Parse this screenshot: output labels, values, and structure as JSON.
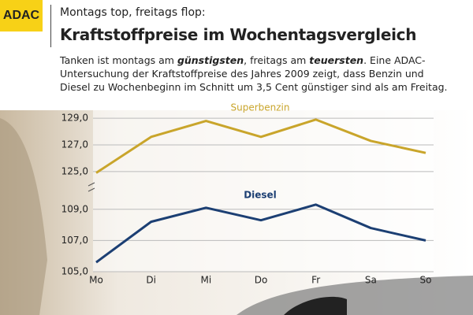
{
  "logo": "ADAC",
  "header": {
    "kicker": "Montags top, freitags flop:",
    "title": "Kraftstoffpreise im Wochentagsvergleich"
  },
  "intro": [
    "Tanken ist montags am ",
    "günstigsten",
    ", freitags am ",
    "teuersten",
    ". Eine ADAC-Untersuchung der Kraftstoffpreise des Jahres 2009 zeigt, dass Benzin und Diesel zu Wochenbeginn im Schnitt um 3,5 Cent günstiger sind als am Freitag."
  ],
  "chart_data": {
    "type": "line",
    "grid": true,
    "categories": [
      "Mo",
      "Di",
      "Mi",
      "Do",
      "Fr",
      "Sa",
      "So"
    ],
    "series": [
      {
        "name": "Superbenzin",
        "color": "#c9a52b",
        "values": [
          124.9,
          127.6,
          128.8,
          127.6,
          128.9,
          127.3,
          126.4
        ],
        "ylim": [
          124.4,
          129.6
        ],
        "yticks": [
          {
            "value": 125,
            "label": "125,0"
          },
          {
            "value": 127,
            "label": "127,0"
          },
          {
            "value": 129,
            "label": "129,0"
          }
        ]
      },
      {
        "name": "Diesel",
        "color": "#1c3f73",
        "values": [
          105.6,
          108.2,
          109.1,
          108.3,
          109.3,
          107.8,
          107.0
        ],
        "ylim": [
          105,
          110
        ],
        "yticks": [
          {
            "value": 105,
            "label": "105,0"
          },
          {
            "value": 107,
            "label": "107,0"
          },
          {
            "value": 109,
            "label": "109,0"
          }
        ]
      }
    ]
  }
}
